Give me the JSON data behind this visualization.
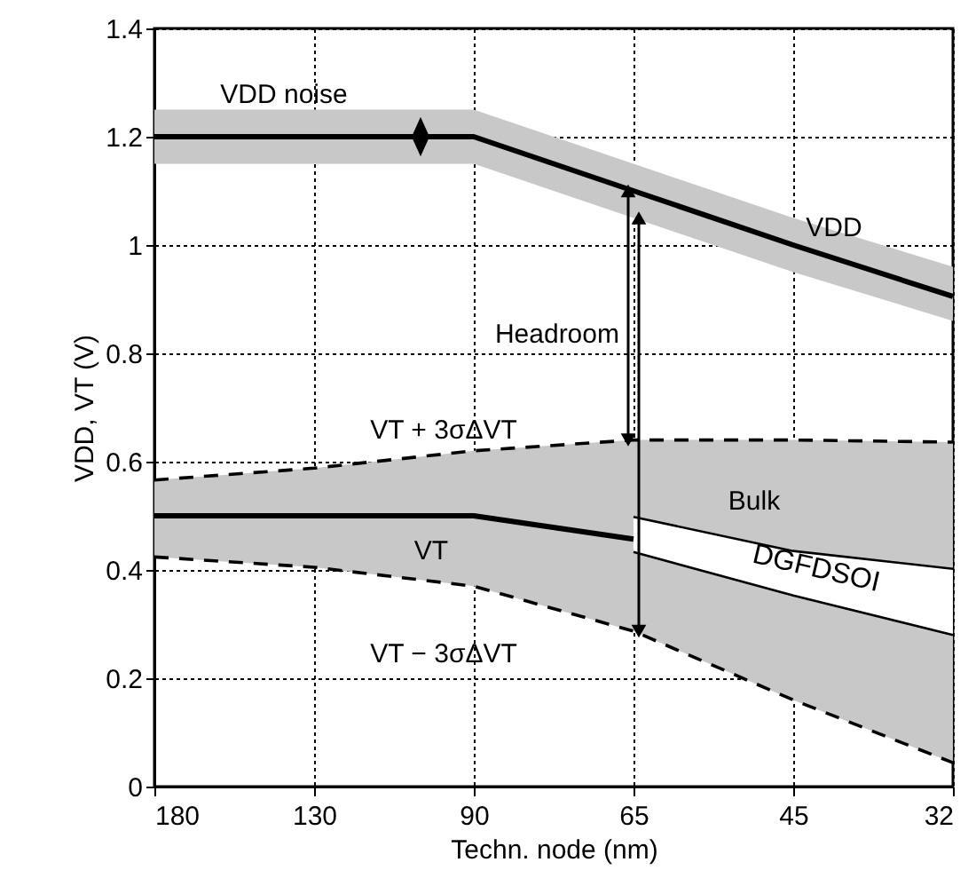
{
  "chart_data": {
    "type": "line",
    "xlabel": "Techn. node (nm)",
    "ylabel": "VDD, VT (V)",
    "categories": [
      "180",
      "130",
      "90",
      "65",
      "45",
      "32"
    ],
    "ylim": [
      0,
      1.4
    ],
    "yticks": [
      0,
      0.2,
      0.4,
      0.6,
      0.8,
      1,
      1.2,
      1.4
    ],
    "grid": true,
    "marker": "none",
    "series": [
      {
        "name": "VDD",
        "color": "#000000",
        "line_style": "solid",
        "values": [
          1.2,
          1.2,
          1.2,
          1.1,
          1.0,
          0.905
        ],
        "lower": [
          1.15,
          1.15,
          1.15,
          1.05,
          0.95,
          0.86
        ],
        "upper": [
          1.25,
          1.25,
          1.25,
          1.15,
          1.05,
          0.96
        ]
      },
      {
        "name": "VT",
        "color": "#000000",
        "line_style": "solid",
        "values": [
          0.5,
          0.5,
          0.5,
          0.457,
          null,
          null
        ]
      },
      {
        "name": "VT + 3σΔVT",
        "color": "#000000",
        "line_style": "dashed",
        "values": [
          0.566,
          0.588,
          0.62,
          0.64,
          0.64,
          0.636
        ]
      },
      {
        "name": "VT − 3σΔVT",
        "color": "#000000",
        "line_style": "dashed",
        "values": [
          0.424,
          0.405,
          0.37,
          0.287,
          0.16,
          0.044
        ]
      },
      {
        "name": "DGFDSOI",
        "color": "#000000",
        "line_style": "solid",
        "values": [
          null,
          null,
          null,
          0.498,
          0.435,
          0.402
        ]
      },
      {
        "color": "#000000",
        "line_style": "solid",
        "values": [
          null,
          null,
          null,
          0.433,
          0.353,
          0.28
        ]
      }
    ],
    "annotations": [
      "VDD noise",
      "Headroom",
      "Bulk"
    ]
  }
}
